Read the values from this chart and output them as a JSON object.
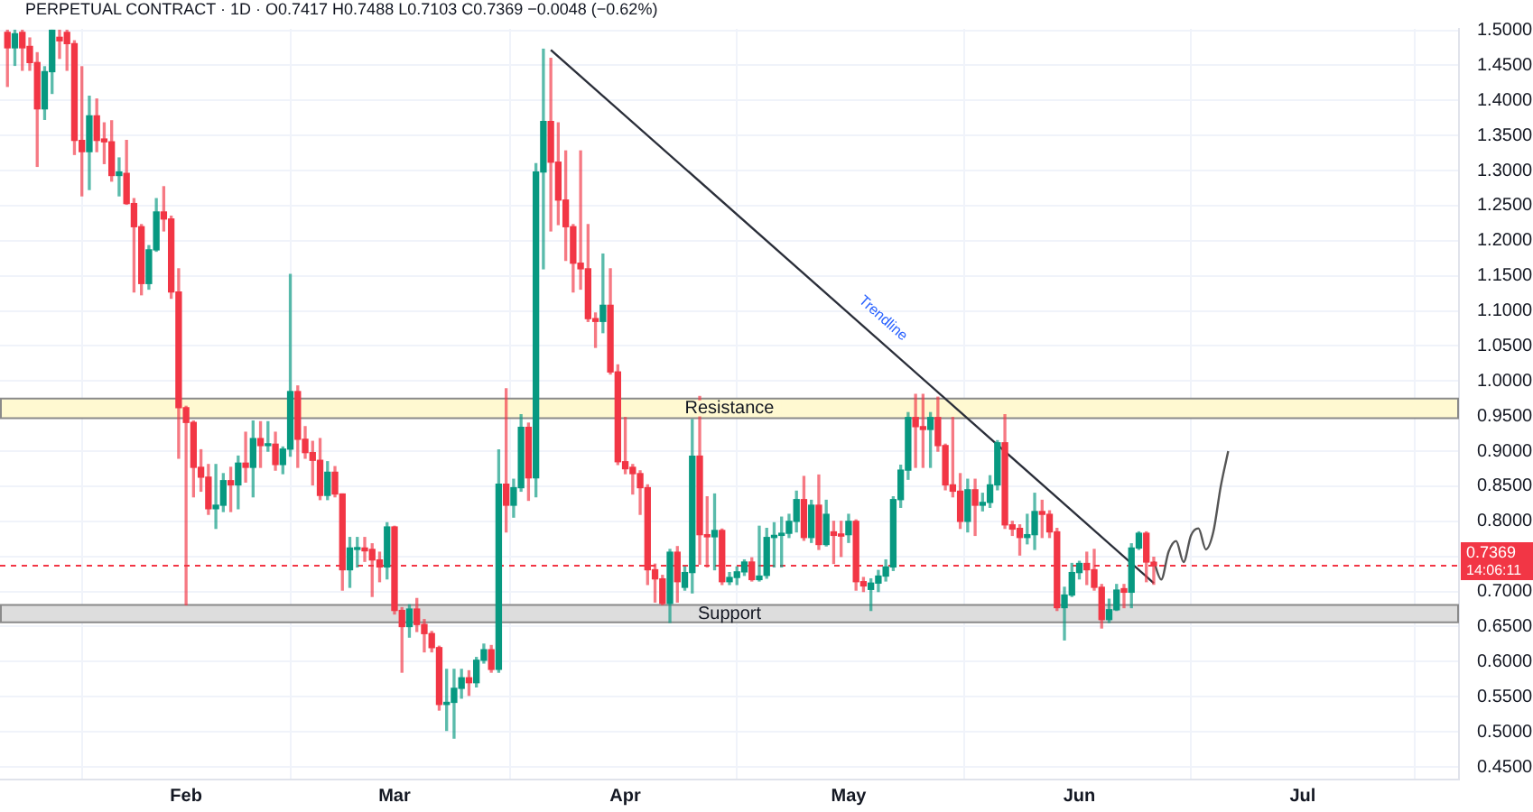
{
  "chart_data": {
    "type": "candlestick",
    "x": [
      "--01-08",
      "--01-09",
      "--01-10",
      "--01-11",
      "--01-12",
      "--01-13",
      "--01-14",
      "--01-15",
      "--01-16",
      "--01-17",
      "--01-18",
      "--01-19",
      "--01-20",
      "--01-21",
      "--01-22",
      "--01-23",
      "--01-24",
      "--01-25",
      "--01-26",
      "--01-27",
      "--01-28",
      "--01-29",
      "--01-30",
      "--01-31",
      "--02-01",
      "--02-02",
      "--02-03",
      "--02-04",
      "--02-05",
      "--02-06",
      "--02-07",
      "--02-08",
      "--02-09",
      "--02-10",
      "--02-11",
      "--02-12",
      "--02-13",
      "--02-14",
      "--02-15",
      "--02-16",
      "--02-17",
      "--02-18",
      "--02-19",
      "--02-20",
      "--02-21",
      "--02-22",
      "--02-23",
      "--02-24",
      "--02-25",
      "--02-26",
      "--02-27",
      "--02-28",
      "--03-01",
      "--03-02",
      "--03-03",
      "--03-04",
      "--03-05",
      "--03-06",
      "--03-07",
      "--03-08",
      "--03-09",
      "--03-10",
      "--03-11",
      "--03-12",
      "--03-13",
      "--03-14",
      "--03-15",
      "--03-16",
      "--03-17",
      "--03-18",
      "--03-19",
      "--03-20",
      "--03-21",
      "--03-22",
      "--03-23",
      "--03-24",
      "--03-25",
      "--03-26",
      "--03-27",
      "--03-28",
      "--03-29",
      "--03-30",
      "--03-31",
      "--04-01",
      "--04-02",
      "--04-03",
      "--04-04",
      "--04-05",
      "--04-06",
      "--04-07",
      "--04-08",
      "--04-09",
      "--04-10",
      "--04-11",
      "--04-12",
      "--04-13",
      "--04-14",
      "--04-15",
      "--04-16",
      "--04-17",
      "--04-18",
      "--04-19",
      "--04-20",
      "--04-21",
      "--04-22",
      "--04-23",
      "--04-24",
      "--04-25",
      "--04-26",
      "--04-27",
      "--04-28",
      "--04-29",
      "--04-30",
      "--05-01",
      "--05-02",
      "--05-03",
      "--05-04",
      "--05-05",
      "--05-06",
      "--05-07",
      "--05-08",
      "--05-09",
      "--05-10",
      "--05-11",
      "--05-12",
      "--05-13",
      "--05-14",
      "--05-15",
      "--05-16",
      "--05-17",
      "--05-18",
      "--05-19",
      "--05-20",
      "--05-21",
      "--05-22",
      "--05-23",
      "--05-24",
      "--05-25",
      "--05-26",
      "--05-27",
      "--05-28",
      "--05-29",
      "--05-30",
      "--05-31",
      "--06-01",
      "--06-02",
      "--06-03",
      "--06-04",
      "--06-05",
      "--06-06",
      "--06-07",
      "--06-08",
      "--06-09",
      "--06-10",
      "--06-11"
    ],
    "ohlc": [
      [
        1.497,
        1.5,
        1.42,
        1.475
      ],
      [
        1.475,
        1.5,
        1.45,
        1.495
      ],
      [
        1.497,
        1.5,
        1.443,
        1.475
      ],
      [
        1.477,
        1.489,
        1.443,
        1.454
      ],
      [
        1.454,
        1.468,
        1.306,
        1.388
      ],
      [
        1.388,
        1.448,
        1.373,
        1.441
      ],
      [
        1.441,
        1.5,
        1.41,
        1.5
      ],
      [
        1.49,
        1.5,
        1.46,
        1.485
      ],
      [
        1.497,
        1.5,
        1.443,
        1.481
      ],
      [
        1.481,
        1.485,
        1.323,
        1.343
      ],
      [
        1.343,
        1.448,
        1.264,
        1.327
      ],
      [
        1.327,
        1.406,
        1.273,
        1.378
      ],
      [
        1.378,
        1.402,
        1.327,
        1.343
      ],
      [
        1.345,
        1.368,
        1.31,
        1.341
      ],
      [
        1.341,
        1.371,
        1.285,
        1.293
      ],
      [
        1.293,
        1.318,
        1.264,
        1.298
      ],
      [
        1.296,
        1.343,
        1.252,
        1.253
      ],
      [
        1.253,
        1.26,
        1.127,
        1.22
      ],
      [
        1.22,
        1.223,
        1.123,
        1.139
      ],
      [
        1.139,
        1.193,
        1.131,
        1.187
      ],
      [
        1.187,
        1.26,
        1.185,
        1.241
      ],
      [
        1.241,
        1.277,
        1.214,
        1.231
      ],
      [
        1.231,
        1.235,
        1.118,
        1.127
      ],
      [
        1.127,
        1.16,
        0.89,
        0.962
      ],
      [
        0.962,
        0.964,
        0.681,
        0.941
      ],
      [
        0.941,
        0.943,
        0.835,
        0.877
      ],
      [
        0.877,
        0.902,
        0.843,
        0.863
      ],
      [
        0.863,
        0.881,
        0.81,
        0.818
      ],
      [
        0.818,
        0.881,
        0.79,
        0.823
      ],
      [
        0.823,
        0.868,
        0.814,
        0.858
      ],
      [
        0.858,
        0.877,
        0.814,
        0.852
      ],
      [
        0.852,
        0.893,
        0.818,
        0.883
      ],
      [
        0.883,
        0.927,
        0.856,
        0.877
      ],
      [
        0.877,
        0.943,
        0.835,
        0.918
      ],
      [
        0.918,
        0.942,
        0.877,
        0.908
      ],
      [
        0.908,
        0.942,
        0.9,
        0.91
      ],
      [
        0.91,
        0.927,
        0.873,
        0.881
      ],
      [
        0.881,
        0.906,
        0.868,
        0.903
      ],
      [
        0.903,
        1.152,
        0.893,
        0.985
      ],
      [
        0.985,
        0.993,
        0.877,
        0.917
      ],
      [
        0.917,
        0.935,
        0.89,
        0.898
      ],
      [
        0.898,
        0.914,
        0.852,
        0.887
      ],
      [
        0.887,
        0.918,
        0.831,
        0.837
      ],
      [
        0.837,
        0.885,
        0.831,
        0.87
      ],
      [
        0.87,
        0.878,
        0.835,
        0.839
      ],
      [
        0.839,
        0.839,
        0.702,
        0.731
      ],
      [
        0.731,
        0.777,
        0.706,
        0.762
      ],
      [
        0.76,
        0.777,
        0.735,
        0.762
      ],
      [
        0.762,
        0.777,
        0.743,
        0.758
      ],
      [
        0.76,
        0.768,
        0.693,
        0.745
      ],
      [
        0.745,
        0.756,
        0.714,
        0.735
      ],
      [
        0.735,
        0.798,
        0.718,
        0.792
      ],
      [
        0.792,
        0.793,
        0.668,
        0.673
      ],
      [
        0.673,
        0.677,
        0.585,
        0.65
      ],
      [
        0.65,
        0.681,
        0.635,
        0.675
      ],
      [
        0.675,
        0.69,
        0.643,
        0.653
      ],
      [
        0.653,
        0.66,
        0.614,
        0.64
      ],
      [
        0.64,
        0.643,
        0.614,
        0.62
      ],
      [
        0.62,
        0.622,
        0.531,
        0.539
      ],
      [
        0.539,
        0.589,
        0.502,
        0.542
      ],
      [
        0.542,
        0.589,
        0.491,
        0.562
      ],
      [
        0.562,
        0.589,
        0.548,
        0.577
      ],
      [
        0.577,
        0.587,
        0.552,
        0.57
      ],
      [
        0.57,
        0.606,
        0.564,
        0.602
      ],
      [
        0.602,
        0.625,
        0.598,
        0.617
      ],
      [
        0.617,
        0.623,
        0.585,
        0.589
      ],
      [
        0.589,
        0.902,
        0.585,
        0.853
      ],
      [
        0.853,
        0.989,
        0.785,
        0.823
      ],
      [
        0.823,
        0.86,
        0.806,
        0.848
      ],
      [
        0.848,
        0.952,
        0.843,
        0.934
      ],
      [
        0.934,
        0.94,
        0.83,
        0.862
      ],
      [
        0.862,
        1.31,
        0.835,
        1.298
      ],
      [
        1.298,
        1.473,
        1.16,
        1.37
      ],
      [
        1.37,
        1.46,
        1.214,
        1.312
      ],
      [
        1.312,
        1.368,
        1.223,
        1.258
      ],
      [
        1.258,
        1.328,
        1.172,
        1.22
      ],
      [
        1.22,
        1.223,
        1.127,
        1.168
      ],
      [
        1.168,
        1.328,
        1.131,
        1.16
      ],
      [
        1.16,
        1.223,
        1.085,
        1.089
      ],
      [
        1.089,
        1.097,
        1.048,
        1.085
      ],
      [
        1.085,
        1.181,
        1.069,
        1.108
      ],
      [
        1.108,
        1.16,
        1.01,
        1.013
      ],
      [
        1.013,
        1.023,
        0.881,
        0.885
      ],
      [
        0.885,
        0.948,
        0.868,
        0.875
      ],
      [
        0.877,
        0.881,
        0.839,
        0.868
      ],
      [
        0.868,
        0.872,
        0.81,
        0.848
      ],
      [
        0.848,
        0.852,
        0.71,
        0.731
      ],
      [
        0.731,
        0.739,
        0.685,
        0.718
      ],
      [
        0.718,
        0.723,
        0.681,
        0.683
      ],
      [
        0.683,
        0.76,
        0.656,
        0.756
      ],
      [
        0.756,
        0.764,
        0.685,
        0.714
      ],
      [
        0.706,
        0.735,
        0.702,
        0.727
      ],
      [
        0.727,
        0.945,
        0.698,
        0.893
      ],
      [
        0.893,
        0.978,
        0.739,
        0.781
      ],
      [
        0.781,
        0.835,
        0.735,
        0.778
      ],
      [
        0.778,
        0.839,
        0.731,
        0.787
      ],
      [
        0.787,
        0.789,
        0.71,
        0.714
      ],
      [
        0.714,
        0.727,
        0.71,
        0.72
      ],
      [
        0.72,
        0.735,
        0.71,
        0.728
      ],
      [
        0.728,
        0.745,
        0.723,
        0.742
      ],
      [
        0.742,
        0.748,
        0.715,
        0.717
      ],
      [
        0.717,
        0.793,
        0.715,
        0.722
      ],
      [
        0.723,
        0.79,
        0.719,
        0.777
      ],
      [
        0.777,
        0.798,
        0.735,
        0.78
      ],
      [
        0.78,
        0.806,
        0.735,
        0.783
      ],
      [
        0.783,
        0.81,
        0.777,
        0.8
      ],
      [
        0.8,
        0.843,
        0.785,
        0.831
      ],
      [
        0.831,
        0.864,
        0.773,
        0.777
      ],
      [
        0.777,
        0.83,
        0.77,
        0.823
      ],
      [
        0.823,
        0.866,
        0.76,
        0.767
      ],
      [
        0.767,
        0.83,
        0.765,
        0.81
      ],
      [
        0.785,
        0.8,
        0.74,
        0.78
      ],
      [
        0.782,
        0.8,
        0.75,
        0.779
      ],
      [
        0.781,
        0.81,
        0.77,
        0.8
      ],
      [
        0.8,
        0.802,
        0.702,
        0.714
      ],
      [
        0.714,
        0.72,
        0.7,
        0.708
      ],
      [
        0.703,
        0.718,
        0.673,
        0.712
      ],
      [
        0.712,
        0.73,
        0.7,
        0.722
      ],
      [
        0.722,
        0.745,
        0.715,
        0.735
      ],
      [
        0.735,
        0.835,
        0.73,
        0.831
      ],
      [
        0.831,
        0.88,
        0.82,
        0.873
      ],
      [
        0.873,
        0.955,
        0.86,
        0.948
      ],
      [
        0.948,
        0.981,
        0.877,
        0.935
      ],
      [
        0.935,
        0.981,
        0.877,
        0.931
      ],
      [
        0.931,
        0.955,
        0.877,
        0.948
      ],
      [
        0.948,
        0.977,
        0.9,
        0.908
      ],
      [
        0.908,
        0.91,
        0.845,
        0.852
      ],
      [
        0.852,
        0.948,
        0.835,
        0.843
      ],
      [
        0.843,
        0.868,
        0.79,
        0.8
      ],
      [
        0.8,
        0.86,
        0.785,
        0.845
      ],
      [
        0.845,
        0.86,
        0.78,
        0.823
      ],
      [
        0.823,
        0.84,
        0.815,
        0.827
      ],
      [
        0.827,
        0.865,
        0.82,
        0.852
      ],
      [
        0.852,
        0.915,
        0.845,
        0.912
      ],
      [
        0.912,
        0.952,
        0.79,
        0.795
      ],
      [
        0.795,
        0.8,
        0.78,
        0.789
      ],
      [
        0.79,
        0.795,
        0.752,
        0.777
      ],
      [
        0.777,
        0.81,
        0.768,
        0.781
      ],
      [
        0.781,
        0.84,
        0.76,
        0.814
      ],
      [
        0.814,
        0.83,
        0.777,
        0.81
      ],
      [
        0.81,
        0.815,
        0.777,
        0.785
      ],
      [
        0.785,
        0.79,
        0.673,
        0.677
      ],
      [
        0.677,
        0.706,
        0.631,
        0.695
      ],
      [
        0.695,
        0.74,
        0.693,
        0.727
      ],
      [
        0.727,
        0.743,
        0.718,
        0.74
      ],
      [
        0.74,
        0.756,
        0.71,
        0.731
      ],
      [
        0.731,
        0.76,
        0.702,
        0.706
      ],
      [
        0.706,
        0.71,
        0.648,
        0.66
      ],
      [
        0.66,
        0.689,
        0.656,
        0.674
      ],
      [
        0.674,
        0.71,
        0.673,
        0.702
      ],
      [
        0.704,
        0.71,
        0.677,
        0.699
      ],
      [
        0.699,
        0.768,
        0.677,
        0.762
      ],
      [
        0.762,
        0.785,
        0.76,
        0.783
      ],
      [
        0.783,
        0.785,
        0.714,
        0.742
      ],
      [
        0.7417,
        0.7488,
        0.7103,
        0.7369
      ]
    ],
    "colors": [
      "#f23645",
      "#089981",
      "#f23645",
      "#f23645",
      "#f23645",
      "#089981",
      "#089981",
      "#f23645",
      "#f23645",
      "#f23645",
      "#f23645",
      "#089981",
      "#f23645",
      "#f23645",
      "#f23645",
      "#089981",
      "#f23645",
      "#f23645",
      "#f23645",
      "#089981",
      "#089981",
      "#f23645",
      "#f23645",
      "#f23645",
      "#f23645",
      "#f23645",
      "#f23645",
      "#f23645",
      "#089981",
      "#089981",
      "#f23645",
      "#089981",
      "#f23645",
      "#089981",
      "#f23645",
      "#089981",
      "#f23645",
      "#089981",
      "#089981",
      "#f23645",
      "#f23645",
      "#f23645",
      "#f23645",
      "#089981",
      "#f23645",
      "#f23645",
      "#089981",
      "#089981",
      "#f23645",
      "#f23645",
      "#f23645",
      "#089981",
      "#f23645",
      "#f23645",
      "#089981",
      "#f23645",
      "#f23645",
      "#f23645",
      "#f23645",
      "#089981",
      "#089981",
      "#089981",
      "#f23645",
      "#089981",
      "#089981",
      "#f23645",
      "#089981",
      "#f23645",
      "#089981",
      "#089981",
      "#f23645",
      "#089981",
      "#089981",
      "#f23645",
      "#f23645",
      "#f23645",
      "#f23645",
      "#f23645",
      "#f23645",
      "#f23645",
      "#089981",
      "#f23645",
      "#f23645",
      "#f23645",
      "#f23645",
      "#f23645",
      "#f23645",
      "#f23645",
      "#f23645",
      "#089981",
      "#f23645",
      "#089981",
      "#089981",
      "#f23645",
      "#f23645",
      "#089981",
      "#f23645",
      "#089981",
      "#089981",
      "#089981",
      "#f23645",
      "#089981",
      "#089981",
      "#089981",
      "#089981",
      "#089981",
      "#089981",
      "#f23645",
      "#089981",
      "#f23645",
      "#089981",
      "#f23645",
      "#f23645",
      "#089981",
      "#f23645",
      "#f23645",
      "#089981",
      "#089981",
      "#089981",
      "#089981",
      "#089981",
      "#089981",
      "#f23645",
      "#f23645",
      "#089981",
      "#f23645",
      "#f23645",
      "#f23645",
      "#f23645",
      "#089981",
      "#f23645",
      "#089981",
      "#089981",
      "#089981",
      "#f23645",
      "#f23645",
      "#f23645",
      "#089981",
      "#089981",
      "#f23645",
      "#f23645",
      "#f23645",
      "#089981",
      "#089981",
      "#089981",
      "#f23645",
      "#f23645",
      "#f23645",
      "#089981",
      "#089981",
      "#f23645",
      "#089981",
      "#089981",
      "#f23645",
      "#f23645"
    ],
    "series": [
      {
        "type": "line",
        "x": [
          "--03-22",
          "--06-11"
        ],
        "values": [
          1.472,
          0.712
        ],
        "color": "#2a2e39"
      },
      {
        "type": "line",
        "x": [
          "--06-11",
          "--06-12",
          "--06-13",
          "--06-14",
          "--06-15",
          "--06-16",
          "--06-17",
          "--06-18",
          "--06-19",
          "--06-20",
          "--06-21"
        ],
        "values": [
          0.743,
          0.717,
          0.757,
          0.772,
          0.742,
          0.78,
          0.79,
          0.76,
          0.785,
          0.85,
          0.9
        ],
        "color": "#555555"
      }
    ],
    "bands": [
      {
        "axis": "y",
        "from": 0.947,
        "to": 0.975,
        "label": "Resistance",
        "color": "#fff9d1"
      },
      {
        "axis": "y",
        "from": 0.656,
        "to": 0.681,
        "label": "Support",
        "color": "#dddddd"
      }
    ],
    "ref_lines": [
      {
        "axis": "y",
        "value": 0.7369,
        "label": "0.7369",
        "color": "#f23645",
        "line_style": "dashed"
      }
    ],
    "title": "PERPETUAL CONTRACT · 1D · O0.7417 H0.7488 L0.7103 C0.7369 −0.0048 (−0.62%)",
    "annotations": [
      {
        "text": "Trendline",
        "x": "--05-04",
        "y": 1.07
      },
      "14:06:11"
    ],
    "xlim": [
      "--01-07",
      "--07-22"
    ],
    "xticks": [
      {
        "value": "--02-01",
        "label": "Feb"
      },
      {
        "value": "--03-01",
        "label": "Mar"
      },
      {
        "value": "--04-01",
        "label": "Apr"
      },
      {
        "value": "--05-01",
        "label": "May"
      },
      {
        "value": "--06-01",
        "label": "Jun"
      },
      {
        "value": "--07-01",
        "label": "Jul"
      }
    ],
    "ylim": [
      0.432,
      1.502
    ],
    "yticks": [
      {
        "value": 0.45,
        "label": "0.4500"
      },
      {
        "value": 0.5,
        "label": "0.5000"
      },
      {
        "value": 0.55,
        "label": "0.5500"
      },
      {
        "value": 0.6,
        "label": "0.6000"
      },
      {
        "value": 0.65,
        "label": "0.6500"
      },
      {
        "value": 0.7,
        "label": "0.7000"
      },
      {
        "value": 0.75,
        "label": null
      },
      {
        "value": 0.8,
        "label": "0.8000"
      },
      {
        "value": 0.85,
        "label": "0.8500"
      },
      {
        "value": 0.9,
        "label": "0.9000"
      },
      {
        "value": 0.95,
        "label": "0.9500"
      },
      {
        "value": 1,
        "label": "1.0000"
      },
      {
        "value": 1.05,
        "label": "1.0500"
      },
      {
        "value": 1.1,
        "label": "1.1000"
      },
      {
        "value": 1.15,
        "label": "1.1500"
      },
      {
        "value": 1.2,
        "label": "1.2000"
      },
      {
        "value": 1.25,
        "label": "1.2500"
      },
      {
        "value": 1.3,
        "label": "1.3000"
      },
      {
        "value": 1.35,
        "label": "1.3500"
      },
      {
        "value": 1.4,
        "label": "1.4000"
      },
      {
        "value": 1.45,
        "label": "1.4500"
      },
      {
        "value": 1.5,
        "label": "1.5000"
      }
    ],
    "grid": true
  }
}
